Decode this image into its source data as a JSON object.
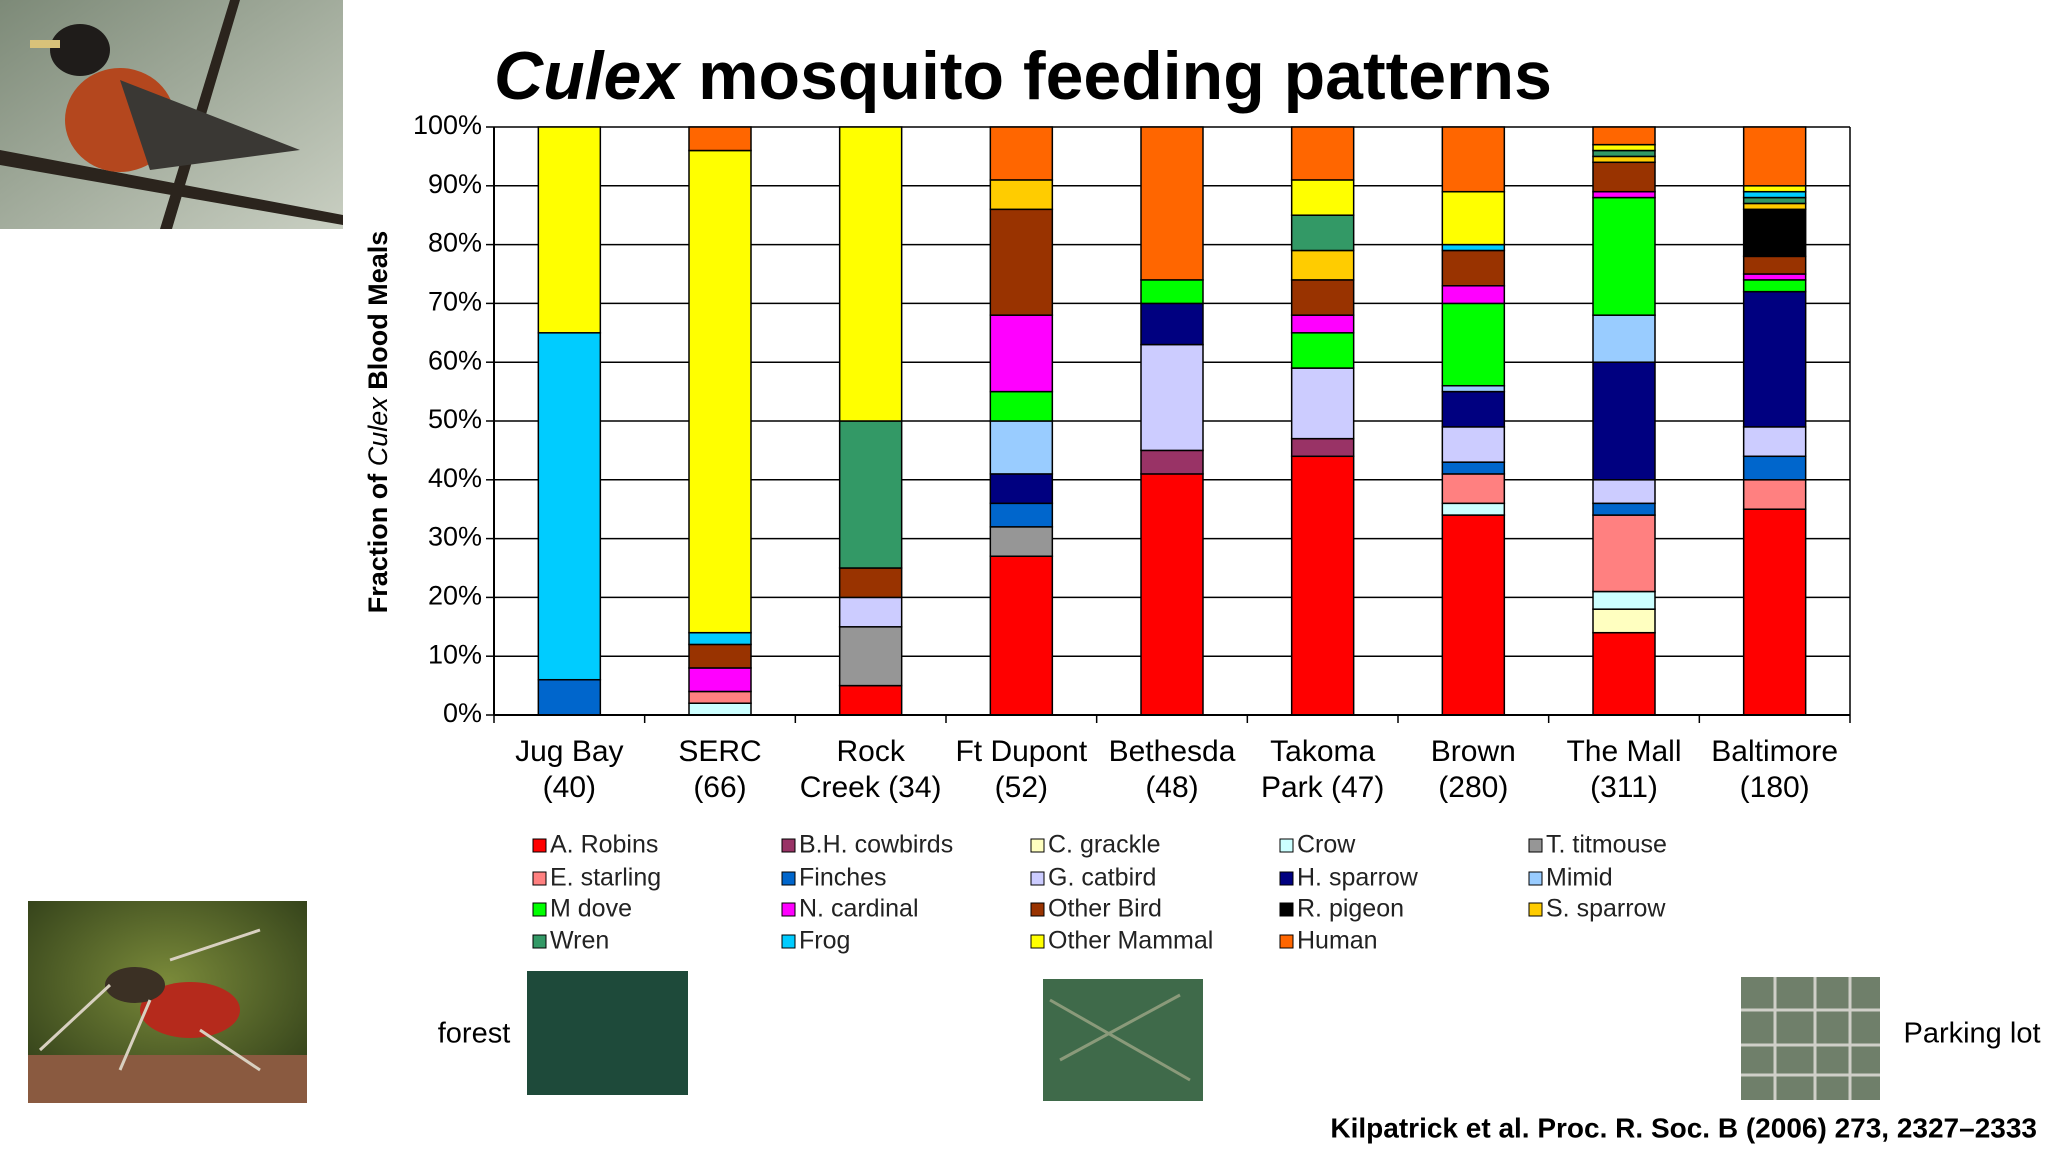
{
  "chart_data": {
    "type": "stacked_bar",
    "title": [
      "Culex",
      " mosquito feeding patterns"
    ],
    "y_label": [
      "Fraction of ",
      "Culex",
      " Blood Meals"
    ],
    "categories": [
      [
        "Jug Bay",
        "(40)"
      ],
      [
        "SERC",
        "(66)"
      ],
      [
        "Rock",
        "Creek (34)"
      ],
      [
        "Ft Dupont",
        "(52)"
      ],
      [
        "Bethesda",
        "(48)"
      ],
      [
        "Takoma",
        "Park (47)"
      ],
      [
        "Brown",
        "(280)"
      ],
      [
        "The Mall",
        "(311)"
      ],
      [
        "Baltimore",
        "(180)"
      ]
    ],
    "ylim": [
      0,
      100
    ],
    "yticks": [
      {
        "value": 0,
        "label": "0%"
      },
      {
        "value": 10,
        "label": "10%"
      },
      {
        "value": 20,
        "label": "20%"
      },
      {
        "value": 30,
        "label": "30%"
      },
      {
        "value": 40,
        "label": "40%"
      },
      {
        "value": 50,
        "label": "50%"
      },
      {
        "value": 60,
        "label": "60%"
      },
      {
        "value": 70,
        "label": "70%"
      },
      {
        "value": 80,
        "label": "80%"
      },
      {
        "value": 90,
        "label": "90%"
      },
      {
        "value": 100,
        "label": "100%"
      }
    ],
    "grid": true,
    "series": [
      {
        "name": "A. Robins",
        "color": "#ff0000",
        "values": [
          0,
          0,
          5,
          27,
          41,
          44,
          34,
          14,
          35
        ]
      },
      {
        "name": "C. grackle",
        "color": "#ffffc0",
        "values": [
          0,
          0,
          0,
          0,
          0,
          0,
          0,
          4,
          0
        ]
      },
      {
        "name": "Crow",
        "color": "#ccffff",
        "values": [
          0,
          2,
          0,
          0,
          0,
          0,
          2,
          3,
          0
        ]
      },
      {
        "name": "E. starling",
        "color": "#ff8080",
        "values": [
          0,
          2,
          0,
          0,
          0,
          0,
          5,
          13,
          5
        ]
      },
      {
        "name": "T. titmouse",
        "color": "#969696",
        "values": [
          0,
          0,
          10,
          5,
          0,
          0,
          0,
          0,
          0
        ]
      },
      {
        "name": "B.H. cowbirds",
        "color": "#993366",
        "values": [
          0,
          0,
          0,
          0,
          4,
          3,
          0,
          0,
          0
        ]
      },
      {
        "name": "Finches",
        "color": "#0066cc",
        "values": [
          6,
          0,
          0,
          4,
          0,
          0,
          2,
          2,
          4
        ]
      },
      {
        "name": "G. catbird",
        "color": "#ccccff",
        "values": [
          0,
          0,
          5,
          0,
          18,
          12,
          6,
          4,
          5
        ]
      },
      {
        "name": "H. sparrow",
        "color": "#000080",
        "values": [
          0,
          0,
          0,
          5,
          7,
          0,
          6,
          20,
          23
        ]
      },
      {
        "name": "Mimid",
        "color": "#99ccff",
        "values": [
          0,
          0,
          0,
          9,
          0,
          0,
          1,
          8,
          0
        ]
      },
      {
        "name": "M dove",
        "color": "#00ff00",
        "values": [
          0,
          0,
          0,
          5,
          4,
          6,
          14,
          20,
          2
        ]
      },
      {
        "name": "N. cardinal",
        "color": "#ff00ff",
        "values": [
          0,
          4,
          0,
          13,
          0,
          3,
          3,
          1,
          1
        ]
      },
      {
        "name": "Other Bird",
        "color": "#993300",
        "values": [
          0,
          4,
          5,
          18,
          0,
          6,
          6,
          5,
          3
        ]
      },
      {
        "name": "R. pigeon",
        "color": "#000000",
        "values": [
          0,
          0,
          0,
          0,
          0,
          0,
          0,
          0,
          8
        ]
      },
      {
        "name": "S. sparrow",
        "color": "#ffcc00",
        "values": [
          0,
          0,
          0,
          5,
          0,
          5,
          0,
          1,
          1
        ]
      },
      {
        "name": "Wren",
        "color": "#339966",
        "values": [
          0,
          0,
          25,
          0,
          0,
          6,
          0,
          1,
          1
        ]
      },
      {
        "name": "Frog",
        "color": "#00ccff",
        "values": [
          59,
          2,
          0,
          0,
          0,
          0,
          1,
          0,
          1
        ]
      },
      {
        "name": "Other Mammal",
        "color": "#ffff00",
        "values": [
          35,
          82,
          50,
          0,
          0,
          6,
          9,
          1,
          1
        ]
      },
      {
        "name": "Human",
        "color": "#ff6600",
        "values": [
          0,
          4,
          0,
          9,
          26,
          9,
          11,
          3,
          10
        ]
      }
    ]
  },
  "labels": {
    "forest": "forest",
    "parking": "Parking lot",
    "citation": "Kilpatrick et al. Proc. R. Soc. B (2006) 273, 2327–2333"
  }
}
